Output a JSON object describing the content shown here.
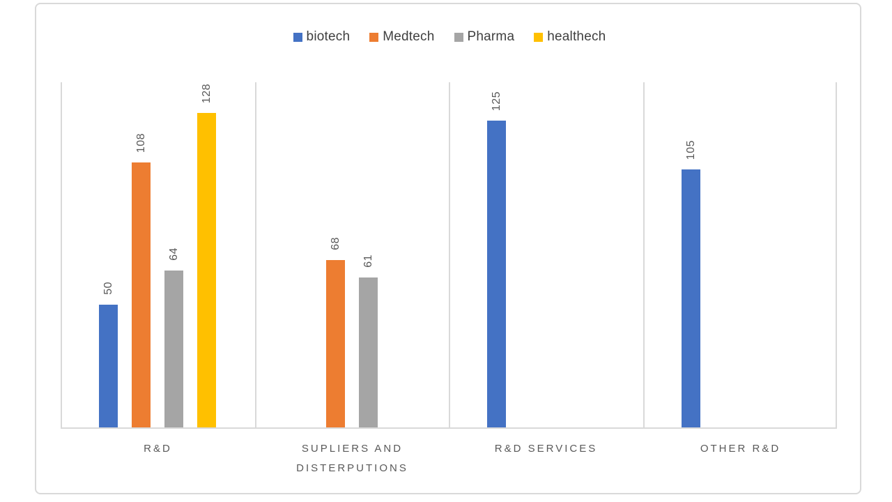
{
  "chart_data": {
    "type": "bar",
    "title": "",
    "xlabel": "",
    "ylabel": "",
    "categories": [
      "R&D",
      "SUPLIERS AND DISTERPUTIONS",
      "R&D SERVICES",
      "OTHER R&D"
    ],
    "series": [
      {
        "name": "biotech",
        "color": "#4472C4",
        "values": [
          50,
          null,
          125,
          105
        ]
      },
      {
        "name": "Medtech",
        "color": "#ED7D31",
        "values": [
          108,
          68,
          null,
          null
        ]
      },
      {
        "name": "Pharma",
        "color": "#A5A5A5",
        "values": [
          64,
          61,
          null,
          null
        ]
      },
      {
        "name": "healthech",
        "color": "#FFC000",
        "values": [
          128,
          null,
          null,
          null
        ]
      }
    ],
    "ylim": [
      0,
      140.5
    ],
    "value_axis_visible": false,
    "data_labels": {
      "position": "outside-end",
      "rotation_deg": -90,
      "color": "#595959"
    },
    "legend_position": "top",
    "grid": "vertical-category-separators",
    "grid_color": "#D9D9D9",
    "axis_color": "#D9D9D9",
    "category_label_color": "#595959",
    "legend_text_color": "#3F3F3F",
    "frame": {
      "border_color": "#D9D9D9",
      "background": "#FFFFFF"
    }
  }
}
